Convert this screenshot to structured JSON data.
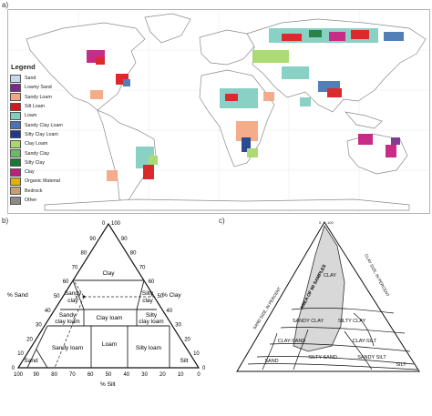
{
  "panels": {
    "a": "a)",
    "b": "b)",
    "c": "c)"
  },
  "legend": {
    "title": "Legend",
    "items": [
      {
        "label": "Sand",
        "color": "#c8d8f0"
      },
      {
        "label": "Loamy Sand",
        "color": "#7b2a8c"
      },
      {
        "label": "Sandy Loam",
        "color": "#f4a582"
      },
      {
        "label": "Silt Loam",
        "color": "#d7191c"
      },
      {
        "label": "Loam",
        "color": "#80cdc1"
      },
      {
        "label": "Sandy Clay Loam",
        "color": "#4575b4"
      },
      {
        "label": "Silty Clay Loam",
        "color": "#1b3a8c"
      },
      {
        "label": "Clay Loam",
        "color": "#a6d96a"
      },
      {
        "label": "Sandy Clay",
        "color": "#66bd63"
      },
      {
        "label": "Silty Clay",
        "color": "#1a7837"
      },
      {
        "label": "Clay",
        "color": "#c51b7d"
      },
      {
        "label": "Organic Material",
        "color": "#e6b000"
      },
      {
        "label": "Bedrock",
        "color": "#c8a070"
      },
      {
        "label": "Other",
        "color": "#8c8c8c"
      }
    ]
  },
  "triangle_b": {
    "sand_label": "% Sand",
    "clay_label": "% Clay",
    "silt_label": "% Silt",
    "marker_label": "X",
    "apex_ticks": [
      "0",
      "100"
    ],
    "left_ticks": [
      "90",
      "80",
      "70",
      "60",
      "50",
      "40",
      "30",
      "20",
      "10",
      "0"
    ],
    "right_ticks": [
      "90",
      "80",
      "70",
      "60",
      "50",
      "40",
      "30",
      "20",
      "10",
      "0"
    ],
    "bottom_ticks": [
      "100",
      "90",
      "80",
      "70",
      "60",
      "50",
      "40",
      "30",
      "20",
      "10",
      "0"
    ],
    "regions": {
      "clay": "Clay",
      "sandy_clay_1": "Sandy",
      "sandy_clay_2": "clay",
      "silty_clay_1": "Silty",
      "silty_clay_2": "clay",
      "sandy_clay_loam_1": "Sandy",
      "sandy_clay_loam_2": "clay loam",
      "clay_loam": "Clay loam",
      "silty_clay_loam_1": "Silty",
      "silty_clay_loam_2": "clay loam",
      "loam": "Loam",
      "sandy_loam": "Sandy loam",
      "silty_loam": "Silty loam",
      "sand": "Sand",
      "silt": "Silt"
    }
  },
  "triangle_c": {
    "left_axis_label": "SAND SIZE, IN PERCENT",
    "right_axis_label": "CLAY SIZE, IN PERCENT",
    "area_label": "AREA OF 90 SAMPLES",
    "apex_ticks": [
      "0",
      "100"
    ],
    "regions": {
      "clay": "CLAY",
      "sandy_clay": "SANDY CLAY",
      "silty_clay": "SILTY CLAY",
      "clay_sand": "CLAY-SAND",
      "clay_silt": "CLAY-SILT",
      "silty_sand": "SILTY SAND",
      "sandy_silt": "SANDY SILT",
      "sand": "SAND",
      "silt": "SILT"
    }
  }
}
